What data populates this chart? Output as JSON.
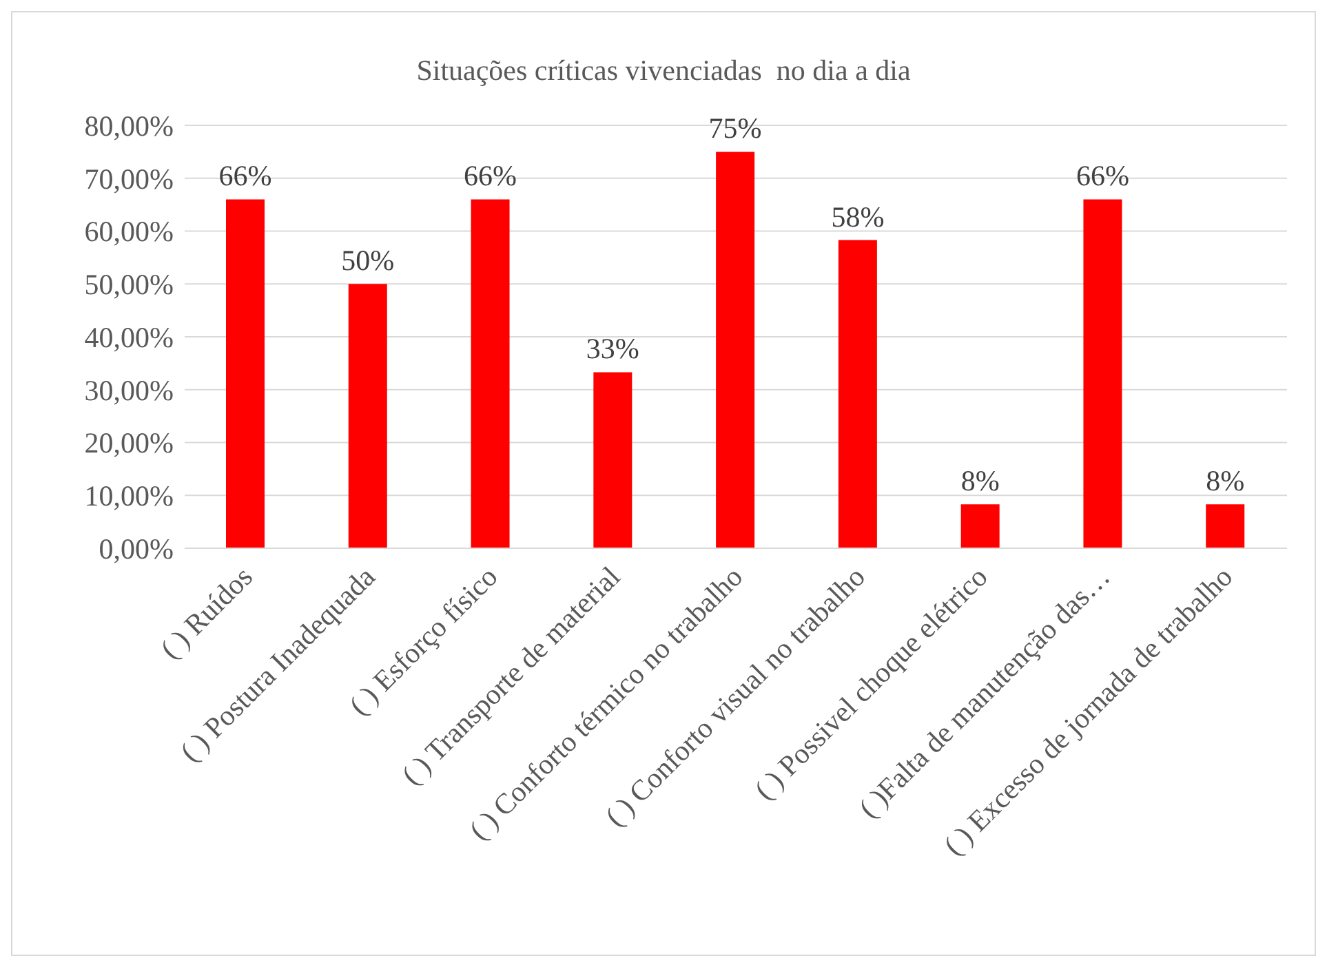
{
  "chart_data": {
    "type": "bar",
    "title": "Situações críticas vivenciadas  no dia a dia",
    "categories": [
      "( ) Ruídos",
      "( ) Postura Inadequada",
      "( ) Esforço físico",
      "( ) Transporte de material",
      "( ) Conforto térmico no trabalho",
      "( ) Conforto visual no trabalho",
      "( ) Possivel choque elétrico",
      "( )Falta de manutenção das…",
      "( ) Excesso de jornada de trabalho"
    ],
    "values": [
      66,
      50,
      66,
      33.3,
      75,
      58.3,
      8.3,
      66,
      8.3
    ],
    "value_labels": [
      "66%",
      "50%",
      "66%",
      "33%",
      "75%",
      "58%",
      "8%",
      "66%",
      "8%"
    ],
    "color": "#ff0000",
    "ylim": [
      0,
      80
    ],
    "yticks": [
      {
        "value": 0,
        "label": "0,00%"
      },
      {
        "value": 10,
        "label": "10,00%"
      },
      {
        "value": 20,
        "label": "20,00%"
      },
      {
        "value": 30,
        "label": "30,00%"
      },
      {
        "value": 40,
        "label": "40,00%"
      },
      {
        "value": 50,
        "label": "50,00%"
      },
      {
        "value": 60,
        "label": "60,00%"
      },
      {
        "value": 70,
        "label": "70,00%"
      },
      {
        "value": 80,
        "label": "80,00%"
      }
    ],
    "grid": "y"
  }
}
